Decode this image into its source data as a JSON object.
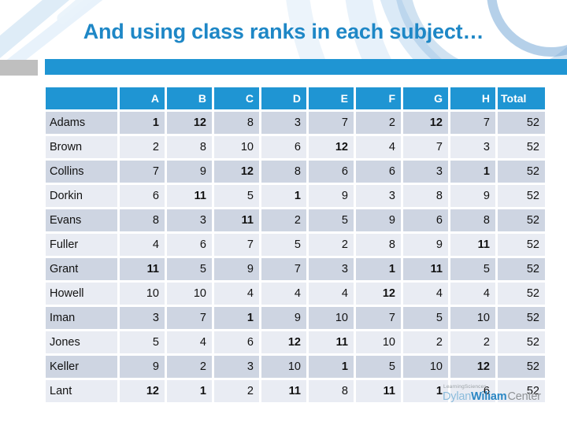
{
  "slide": {
    "title": "And using class ranks in each subject…"
  },
  "table": {
    "columns": [
      "",
      "A",
      "B",
      "C",
      "D",
      "E",
      "F",
      "G",
      "H",
      "Total"
    ],
    "bold_values": [
      1,
      11,
      12
    ],
    "rows": [
      {
        "name": "Adams",
        "values": [
          1,
          12,
          8,
          3,
          7,
          2,
          12,
          7
        ],
        "total": 52
      },
      {
        "name": "Brown",
        "values": [
          2,
          8,
          10,
          6,
          12,
          4,
          7,
          3
        ],
        "total": 52
      },
      {
        "name": "Collins",
        "values": [
          7,
          9,
          12,
          8,
          6,
          6,
          3,
          1
        ],
        "total": 52
      },
      {
        "name": "Dorkin",
        "values": [
          6,
          11,
          5,
          1,
          9,
          3,
          8,
          9
        ],
        "total": 52
      },
      {
        "name": "Evans",
        "values": [
          8,
          3,
          11,
          2,
          5,
          9,
          6,
          8
        ],
        "total": 52
      },
      {
        "name": "Fuller",
        "values": [
          4,
          6,
          7,
          5,
          2,
          8,
          9,
          11
        ],
        "total": 52
      },
      {
        "name": "Grant",
        "values": [
          11,
          5,
          9,
          7,
          3,
          1,
          11,
          5
        ],
        "total": 52
      },
      {
        "name": "Howell",
        "values": [
          10,
          10,
          4,
          4,
          4,
          12,
          4,
          4
        ],
        "total": 52
      },
      {
        "name": "Iman",
        "values": [
          3,
          7,
          1,
          9,
          10,
          7,
          5,
          10
        ],
        "total": 52
      },
      {
        "name": "Jones",
        "values": [
          5,
          4,
          6,
          12,
          11,
          10,
          2,
          2
        ],
        "total": 52
      },
      {
        "name": "Keller",
        "values": [
          9,
          2,
          3,
          10,
          1,
          5,
          10,
          12
        ],
        "total": 52
      },
      {
        "name": "Lant",
        "values": [
          12,
          1,
          2,
          11,
          8,
          11,
          1,
          6
        ],
        "total": 52
      }
    ]
  },
  "logo": {
    "tagline": "LearningSciences",
    "dylan": "Dylan",
    "wiliam": "Wiliam",
    "center": "Center"
  },
  "colors": {
    "accent_blue": "#1f95d3",
    "title_blue": "#1e87c6",
    "gray_block": "#bfbfbf",
    "band_dark": "#ced5e2",
    "band_light": "#e9ecf3",
    "logo_lightblue": "#8cbcdc",
    "logo_blue": "#2b87c4",
    "logo_gray": "#9aa0a4",
    "logo_gray2": "#8f9295"
  }
}
